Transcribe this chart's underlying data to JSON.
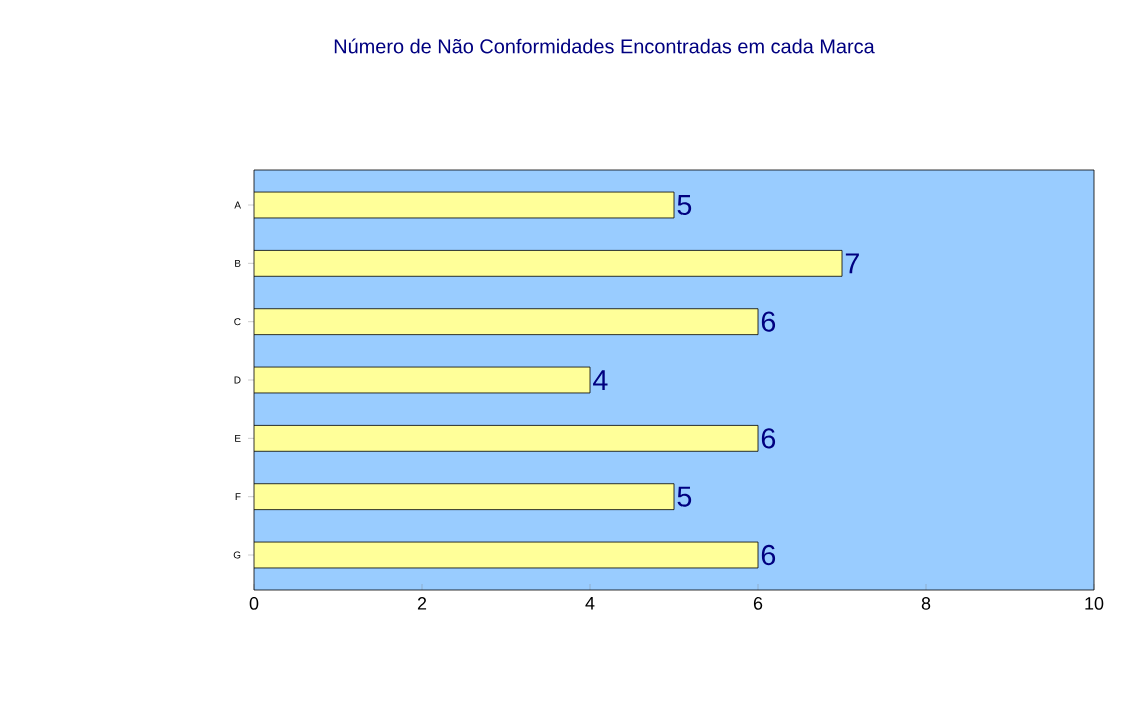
{
  "chart_data": {
    "type": "bar",
    "orientation": "horizontal",
    "title": "Número de Não Conformidades Encontradas em cada Marca",
    "categories": [
      "A",
      "B",
      "C",
      "D",
      "E",
      "F",
      "G"
    ],
    "values": [
      5,
      7,
      6,
      4,
      6,
      5,
      6
    ],
    "color": "#ffff99",
    "xlim": [
      0,
      10
    ],
    "xticks": [
      0,
      2,
      4,
      6,
      8,
      10
    ],
    "data_labels": true
  }
}
